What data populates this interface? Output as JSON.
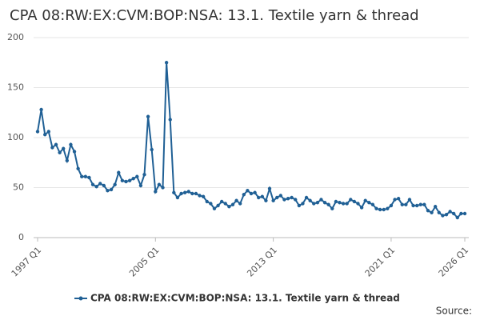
{
  "chart_data": {
    "type": "line",
    "title": "CPA 08:RW:EX:CVM:BOP:NSA: 13.1. Textile yarn & thread",
    "categories": [
      "1997 Q1",
      null,
      null,
      null,
      null,
      null,
      null,
      null,
      null,
      null,
      null,
      null,
      null,
      null,
      null,
      null,
      null,
      null,
      null,
      null,
      null,
      null,
      null,
      null,
      null,
      null,
      null,
      null,
      null,
      null,
      null,
      null,
      "2005 Q1",
      null,
      null,
      null,
      null,
      null,
      null,
      null,
      null,
      null,
      null,
      null,
      null,
      null,
      null,
      null,
      null,
      null,
      null,
      null,
      null,
      null,
      null,
      null,
      null,
      null,
      null,
      null,
      null,
      null,
      null,
      null,
      "2013 Q1",
      null,
      null,
      null,
      null,
      null,
      null,
      null,
      null,
      null,
      null,
      null,
      null,
      null,
      null,
      null,
      null,
      null,
      null,
      null,
      null,
      null,
      null,
      null,
      null,
      null,
      null,
      null,
      null,
      null,
      null,
      null,
      "2021 Q1",
      null,
      null,
      null,
      null,
      null,
      null,
      null,
      null,
      null,
      null,
      null,
      null,
      null,
      null,
      null,
      null,
      null,
      null,
      null,
      "2026 Q1"
    ],
    "series": [
      {
        "name": "CPA 08:RW:EX:CVM:BOP:NSA: 13.1. Textile yarn & thread",
        "color": "#206095",
        "values": [
          106,
          128,
          103,
          106,
          90,
          93,
          85,
          89,
          77,
          93,
          86,
          69,
          61,
          61,
          60,
          53,
          51,
          54,
          52,
          47,
          48,
          53,
          65,
          57,
          56,
          57,
          59,
          61,
          52,
          63,
          121,
          88,
          46,
          53,
          50,
          175,
          118,
          45,
          40,
          44,
          45,
          46,
          44,
          44,
          42,
          41,
          36,
          34,
          29,
          32,
          36,
          34,
          31,
          33,
          37,
          34,
          43,
          47,
          44,
          45,
          40,
          41,
          37,
          49,
          37,
          40,
          42,
          38,
          39,
          40,
          38,
          32,
          34,
          40,
          37,
          34,
          35,
          38,
          35,
          33,
          29,
          36,
          35,
          34,
          34,
          38,
          36,
          34,
          30,
          37,
          35,
          33,
          29,
          28,
          28,
          29,
          32,
          38,
          39,
          33,
          33,
          38,
          32,
          32,
          33,
          33,
          27,
          25,
          31,
          25,
          22,
          23,
          26,
          24,
          20,
          24,
          24
        ]
      }
    ],
    "ylim": [
      0,
      200
    ],
    "yticks": [
      0,
      50,
      100,
      150,
      200
    ],
    "grid": true,
    "legend": "bottom",
    "source": "Source:"
  }
}
